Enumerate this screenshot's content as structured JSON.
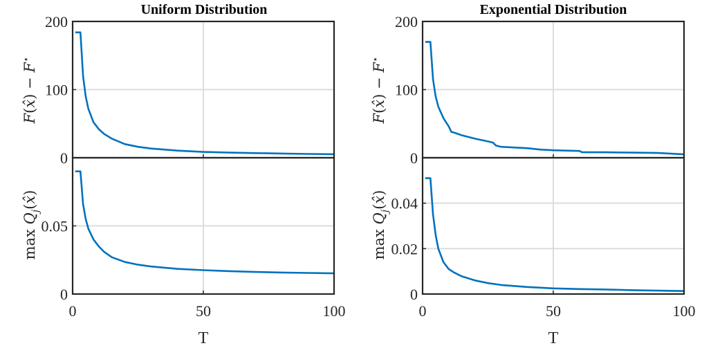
{
  "chart_data": [
    {
      "type": "line",
      "title": "Uniform Distribution",
      "xlabel": "",
      "ylabel": "F(x̂) − F*",
      "xlim": [
        0,
        100
      ],
      "ylim": [
        0,
        200
      ],
      "xticks": [
        "0",
        "50",
        "100"
      ],
      "yticks": [
        {
          "value": 0,
          "label": "0"
        },
        {
          "value": 100,
          "label": "100"
        },
        {
          "value": 200,
          "label": "200"
        }
      ],
      "grid": true,
      "series": [
        {
          "x": [
            1,
            2,
            3,
            4,
            5,
            6,
            8,
            10,
            12,
            15,
            20,
            25,
            30,
            40,
            50,
            60,
            70,
            80,
            90,
            100
          ],
          "y": [
            184,
            184,
            184,
            120,
            90,
            72,
            52,
            42,
            35,
            28,
            20,
            16,
            13.5,
            10.5,
            8.5,
            7.5,
            6.8,
            6.2,
            5.6,
            5.2
          ]
        }
      ]
    },
    {
      "type": "line",
      "title": "",
      "xlabel": "T",
      "ylabel": "max Qj(x̂)",
      "xlim": [
        0,
        100
      ],
      "ylim": [
        0,
        0.1
      ],
      "xticks": [
        "0",
        "50",
        "100"
      ],
      "yticks": [
        {
          "value": 0,
          "label": "0"
        },
        {
          "value": 0.05,
          "label": "0.05"
        }
      ],
      "grid": true,
      "series": [
        {
          "x": [
            1,
            2,
            3,
            4,
            5,
            6,
            8,
            10,
            12,
            15,
            20,
            25,
            30,
            40,
            50,
            60,
            70,
            80,
            90,
            100
          ],
          "y": [
            0.09,
            0.09,
            0.09,
            0.066,
            0.055,
            0.048,
            0.04,
            0.035,
            0.031,
            0.027,
            0.0235,
            0.0215,
            0.0202,
            0.0185,
            0.0175,
            0.0168,
            0.0162,
            0.0158,
            0.0155,
            0.0152
          ]
        }
      ]
    },
    {
      "type": "line",
      "title": "Exponential Distribution",
      "xlabel": "",
      "ylabel": "F(x̂) − F*",
      "xlim": [
        0,
        100
      ],
      "ylim": [
        0,
        200
      ],
      "xticks": [
        "0",
        "50",
        "100"
      ],
      "yticks": [
        {
          "value": 0,
          "label": "0"
        },
        {
          "value": 100,
          "label": "100"
        },
        {
          "value": 200,
          "label": "200"
        }
      ],
      "grid": true,
      "series": [
        {
          "x": [
            1,
            2,
            3,
            4,
            5,
            6,
            8,
            10,
            11,
            12,
            15,
            20,
            25,
            27,
            28,
            30,
            40,
            45,
            50,
            60,
            61,
            70,
            80,
            90,
            100
          ],
          "y": [
            170,
            170,
            170,
            115,
            90,
            75,
            58,
            46,
            38,
            37,
            33,
            28,
            24,
            22,
            18,
            16,
            14,
            12,
            11,
            10,
            8,
            8,
            7.5,
            7,
            5
          ]
        }
      ]
    },
    {
      "type": "line",
      "title": "",
      "xlabel": "T",
      "ylabel": "max Qj(x̂)",
      "xlim": [
        0,
        100
      ],
      "ylim": [
        0,
        0.06
      ],
      "xticks": [
        "0",
        "50",
        "100"
      ],
      "yticks": [
        {
          "value": 0,
          "label": "0"
        },
        {
          "value": 0.02,
          "label": "0.02"
        },
        {
          "value": 0.04,
          "label": "0.04"
        }
      ],
      "grid": true,
      "series": [
        {
          "x": [
            1,
            2,
            3,
            4,
            5,
            6,
            8,
            10,
            12,
            15,
            20,
            25,
            30,
            40,
            50,
            60,
            70,
            80,
            90,
            100
          ],
          "y": [
            0.051,
            0.051,
            0.051,
            0.035,
            0.026,
            0.02,
            0.014,
            0.011,
            0.0095,
            0.0078,
            0.006,
            0.0048,
            0.004,
            0.0031,
            0.0025,
            0.0022,
            0.002,
            0.0017,
            0.0015,
            0.0013
          ]
        }
      ]
    }
  ]
}
